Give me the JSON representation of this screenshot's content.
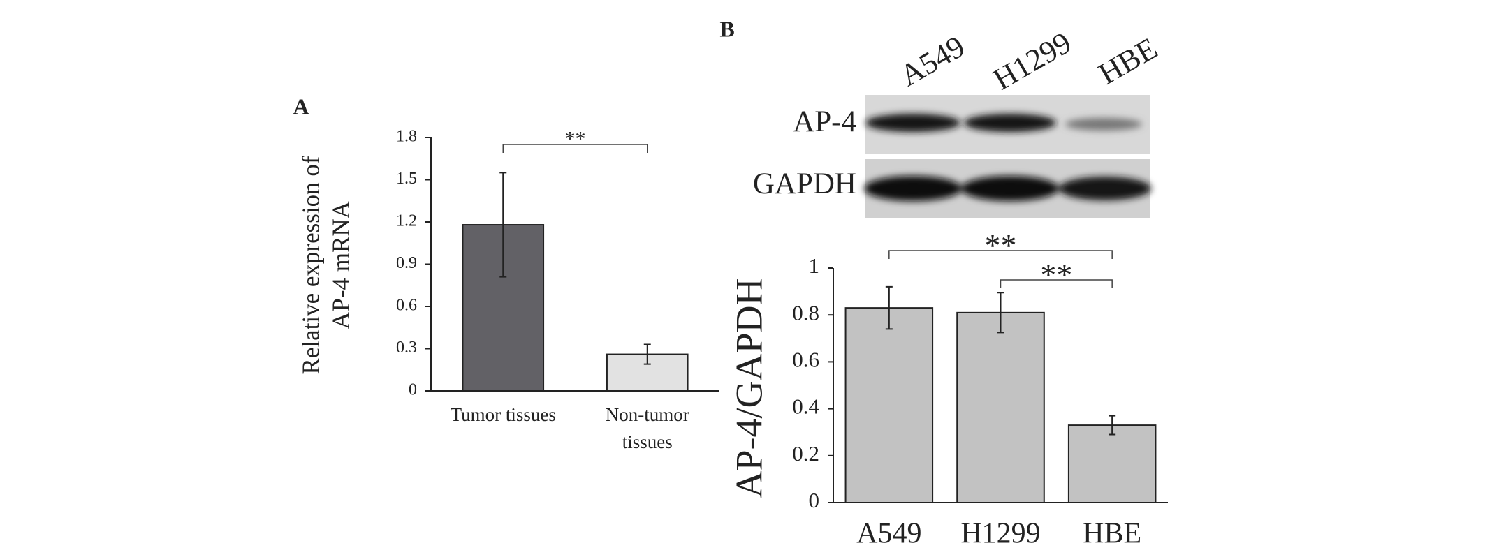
{
  "chart_data": [
    {
      "type": "bar",
      "panel": "A",
      "ylabel": [
        "Relative expression of",
        "AP-4 mRNA"
      ],
      "categories": [
        "Tumor tissues",
        "Non-tumor tissues"
      ],
      "values": [
        1.18,
        0.26
      ],
      "errors": [
        0.37,
        0.07
      ],
      "colors": [
        "#626166",
        "#e2e2e2"
      ],
      "ylim": [
        0,
        1.8
      ],
      "yticks": [
        0,
        0.3,
        0.6,
        0.9,
        1.2,
        1.5,
        1.8
      ],
      "annotations": [
        "**"
      ]
    },
    {
      "type": "bar",
      "panel": "B",
      "ylabel": [
        "AP-4/GAPDH"
      ],
      "categories": [
        "A549",
        "H1299",
        "HBE"
      ],
      "values": [
        0.83,
        0.81,
        0.33
      ],
      "errors": [
        0.09,
        0.085,
        0.04
      ],
      "colors": [
        "#c2c2c2",
        "#c2c2c2",
        "#c2c2c2"
      ],
      "ylim": [
        0,
        1
      ],
      "yticks": [
        0,
        0.2,
        0.4,
        0.6,
        0.8,
        1
      ],
      "annotations": [
        "**",
        "**"
      ],
      "blot": {
        "lanes": [
          "A549",
          "H1299",
          "HBE"
        ],
        "rows": [
          "AP-4",
          "GAPDH"
        ]
      }
    }
  ]
}
